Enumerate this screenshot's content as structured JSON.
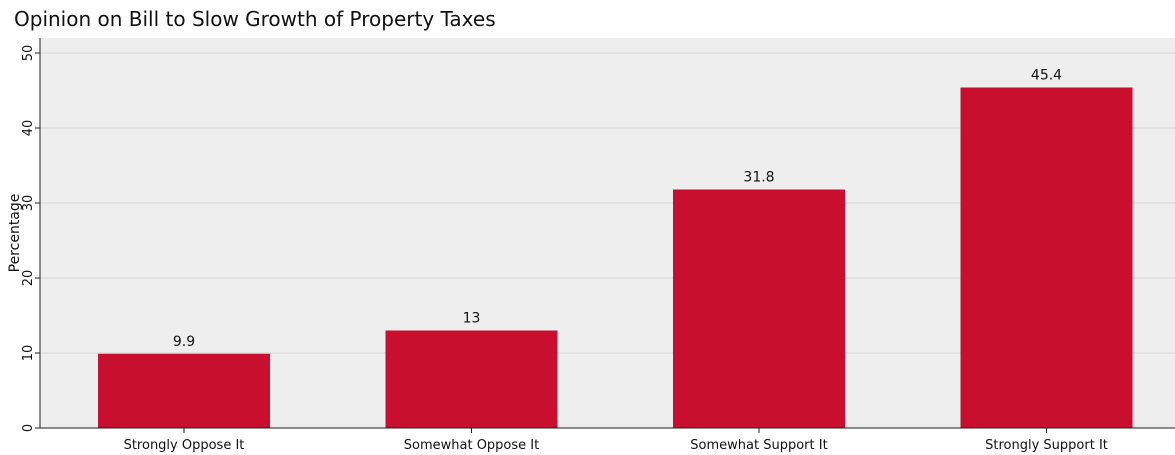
{
  "chart_data": {
    "type": "bar",
    "title": "Opinion on Bill to Slow Growth of Property Taxes",
    "xlabel": "",
    "ylabel": "Percentage",
    "categories": [
      "Strongly Oppose It",
      "Somewhat Oppose It",
      "Somewhat Support It",
      "Strongly Support It"
    ],
    "values": [
      9.9,
      13,
      31.8,
      45.4
    ],
    "value_labels": [
      "9.9",
      "13",
      "31.8",
      "45.4"
    ],
    "ylim": [
      0,
      50
    ],
    "yticks": [
      0,
      10,
      20,
      30,
      40,
      50
    ],
    "ytick_labels": [
      "0",
      "10",
      "20",
      "30",
      "40",
      "50"
    ],
    "grid": true,
    "legend": "none",
    "bar_color": "#c8102e",
    "plot_background": "#eeeeee"
  }
}
